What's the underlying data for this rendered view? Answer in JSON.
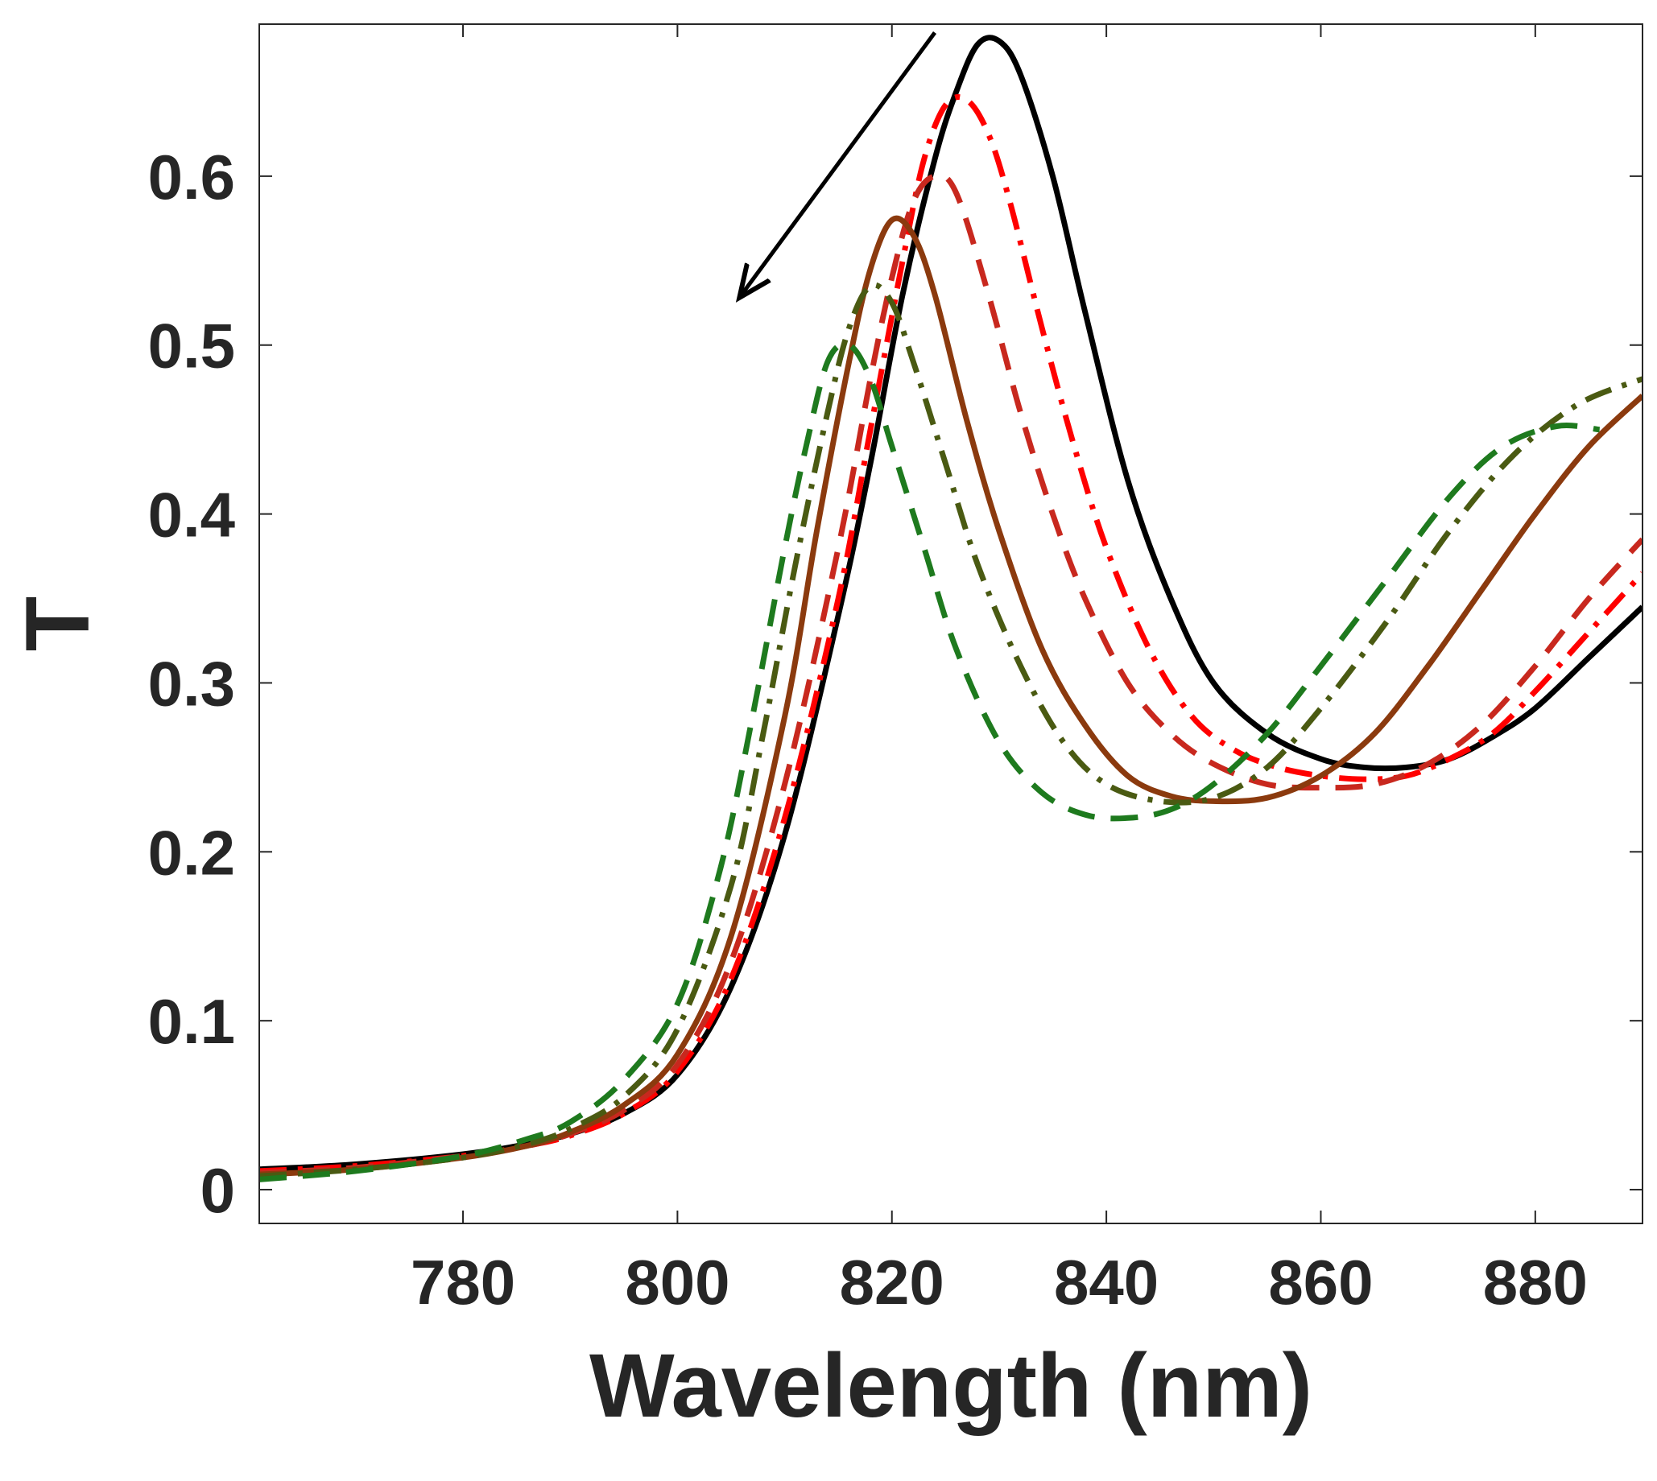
{
  "chart_data": {
    "type": "line",
    "title": "",
    "xlabel": "Wavelength (nm)",
    "ylabel": "T",
    "xlim": [
      761,
      890
    ],
    "ylim": [
      -0.02,
      0.69
    ],
    "xticks": [
      780,
      800,
      820,
      840,
      860,
      880
    ],
    "yticks": [
      0,
      0.1,
      0.2,
      0.3,
      0.4,
      0.5,
      0.6
    ],
    "ytick_labels": [
      "0",
      "0.1",
      "0.2",
      "0.3",
      "0.4",
      "0.5",
      "0.6"
    ],
    "grid": false,
    "legend": "none",
    "annotations": [
      {
        "type": "arrow",
        "from": [
          824,
          0.685
        ],
        "to": [
          806,
          0.53
        ],
        "color": "#000000"
      }
    ],
    "series": [
      {
        "color": "#000000",
        "style": "solid",
        "x": [
          761,
          770,
          780,
          786,
          790,
          795,
          800,
          805,
          810,
          815,
          818,
          821,
          824,
          826,
          828,
          830,
          832,
          835,
          838,
          842,
          846,
          850,
          855,
          860,
          864,
          868,
          872,
          876,
          880,
          885,
          890
        ],
        "y": [
          0.012,
          0.015,
          0.021,
          0.027,
          0.033,
          0.045,
          0.068,
          0.12,
          0.21,
          0.34,
          0.43,
          0.53,
          0.61,
          0.65,
          0.678,
          0.68,
          0.66,
          0.6,
          0.52,
          0.42,
          0.35,
          0.3,
          0.27,
          0.255,
          0.25,
          0.25,
          0.255,
          0.268,
          0.285,
          0.315,
          0.345
        ]
      },
      {
        "color": "#ff0000",
        "style": "dashdot",
        "x": [
          761,
          770,
          780,
          786,
          790,
          795,
          800,
          805,
          810,
          815,
          818,
          821,
          823,
          825,
          827,
          829,
          831,
          834,
          837,
          840,
          844,
          848,
          852,
          856,
          860,
          864,
          868,
          872,
          876,
          880,
          885,
          890
        ],
        "y": [
          0.011,
          0.014,
          0.02,
          0.026,
          0.032,
          0.045,
          0.07,
          0.125,
          0.22,
          0.35,
          0.45,
          0.55,
          0.61,
          0.642,
          0.645,
          0.625,
          0.585,
          0.51,
          0.44,
          0.38,
          0.32,
          0.28,
          0.26,
          0.25,
          0.245,
          0.243,
          0.245,
          0.255,
          0.27,
          0.295,
          0.33,
          0.365
        ]
      },
      {
        "color": "#c8281e",
        "style": "dashed",
        "x": [
          761,
          770,
          780,
          786,
          790,
          795,
          800,
          805,
          810,
          815,
          818,
          820,
          822,
          824,
          826,
          829,
          832,
          835,
          838,
          842,
          846,
          850,
          855,
          860,
          865,
          870,
          875,
          880,
          885,
          890
        ],
        "y": [
          0.01,
          0.013,
          0.02,
          0.026,
          0.033,
          0.047,
          0.074,
          0.135,
          0.24,
          0.38,
          0.48,
          0.54,
          0.585,
          0.6,
          0.59,
          0.53,
          0.46,
          0.4,
          0.35,
          0.3,
          0.27,
          0.252,
          0.24,
          0.238,
          0.24,
          0.252,
          0.275,
          0.31,
          0.35,
          0.385
        ]
      },
      {
        "color": "#8b3a0e",
        "style": "solid",
        "x": [
          761,
          770,
          780,
          786,
          790,
          795,
          800,
          805,
          810,
          813,
          816,
          818,
          820,
          822,
          824,
          827,
          830,
          834,
          838,
          842,
          846,
          850,
          855,
          860,
          865,
          870,
          875,
          880,
          885,
          890
        ],
        "y": [
          0.009,
          0.012,
          0.019,
          0.026,
          0.034,
          0.05,
          0.08,
          0.15,
          0.28,
          0.39,
          0.49,
          0.545,
          0.574,
          0.565,
          0.53,
          0.455,
          0.39,
          0.32,
          0.275,
          0.245,
          0.233,
          0.23,
          0.232,
          0.245,
          0.27,
          0.31,
          0.355,
          0.4,
          0.44,
          0.47
        ]
      },
      {
        "color": "#4a5a12",
        "style": "dashdot",
        "x": [
          761,
          770,
          780,
          786,
          790,
          795,
          800,
          805,
          808,
          811,
          814,
          816,
          818,
          820,
          822,
          825,
          828,
          832,
          836,
          840,
          845,
          850,
          855,
          860,
          866,
          872,
          878,
          884,
          890
        ],
        "y": [
          0.008,
          0.012,
          0.019,
          0.027,
          0.036,
          0.055,
          0.095,
          0.18,
          0.27,
          0.37,
          0.46,
          0.51,
          0.535,
          0.525,
          0.49,
          0.43,
          0.37,
          0.31,
          0.265,
          0.24,
          0.23,
          0.232,
          0.25,
          0.285,
          0.335,
          0.39,
          0.435,
          0.465,
          0.48
        ]
      },
      {
        "color": "#1e7a1e",
        "style": "dashed",
        "x": [
          761,
          770,
          780,
          786,
          790,
          795,
          800,
          804,
          807,
          810,
          812,
          814,
          816,
          818,
          820,
          823,
          826,
          830,
          834,
          838,
          842,
          846,
          850,
          855,
          860,
          866,
          872,
          877,
          882,
          886
        ],
        "y": [
          0.006,
          0.011,
          0.02,
          0.03,
          0.04,
          0.065,
          0.11,
          0.19,
          0.28,
          0.38,
          0.44,
          0.49,
          0.5,
          0.48,
          0.44,
          0.38,
          0.32,
          0.265,
          0.235,
          0.222,
          0.22,
          0.225,
          0.24,
          0.27,
          0.31,
          0.36,
          0.41,
          0.44,
          0.452,
          0.45
        ]
      }
    ]
  }
}
